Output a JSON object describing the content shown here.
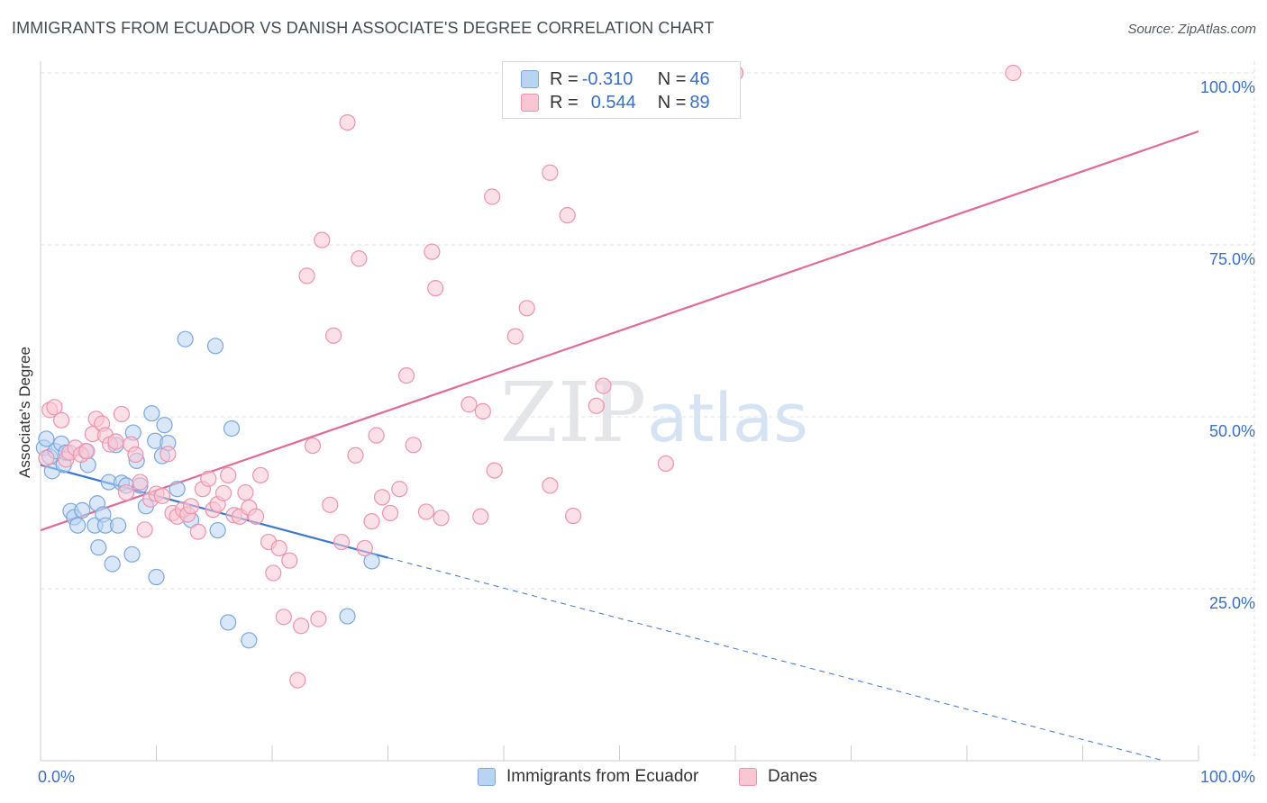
{
  "header": {
    "title": "IMMIGRANTS FROM ECUADOR VS DANISH ASSOCIATE'S DEGREE CORRELATION CHART",
    "source": "Source: ZipAtlas.com"
  },
  "legend": {
    "blue": {
      "r_label": "R = ",
      "r_value": "-0.310",
      "n_label": "N = ",
      "n_value": "46"
    },
    "pink": {
      "r_label": "R = ",
      "r_value": "0.544",
      "n_label": "N = ",
      "n_value": "89"
    }
  },
  "colors": {
    "blue_fill": "#b9d3f2",
    "blue_stroke": "#7aa7df",
    "blue_line": "#3a78d0",
    "pink_fill": "#f9c6d4",
    "pink_stroke": "#ee93ad",
    "pink_line": "#e06b96",
    "axis_label": "#3b6fc4",
    "grid": "#dfe2e6"
  },
  "watermark": {
    "zip": "ZIP",
    "atlas": "atlas"
  },
  "chart_data": {
    "type": "scatter",
    "title": "IMMIGRANTS FROM ECUADOR VS DANISH ASSOCIATE'S DEGREE CORRELATION CHART",
    "xlabel": "",
    "ylabel": "Associate's Degree",
    "xlim": [
      0,
      100
    ],
    "ylim": [
      0,
      102
    ],
    "x_tick_labels": [
      "0.0%",
      "100.0%"
    ],
    "y_ticks": [
      25,
      50,
      75,
      100
    ],
    "y_tick_labels": [
      "25.0%",
      "50.0%",
      "75.0%",
      "100.0%"
    ],
    "grid": true,
    "legend_position": "top-center",
    "series": [
      {
        "name": "Immigrants from Ecuador",
        "color": "#b9d3f2",
        "points": [
          [
            0.3,
            45.5
          ],
          [
            0.5,
            46.8
          ],
          [
            0.8,
            44.2
          ],
          [
            1.0,
            42.1
          ],
          [
            1.3,
            45.0
          ],
          [
            1.8,
            46.1
          ],
          [
            2.0,
            43.0
          ],
          [
            2.2,
            44.8
          ],
          [
            2.6,
            36.3
          ],
          [
            2.9,
            35.4
          ],
          [
            3.2,
            34.2
          ],
          [
            3.6,
            36.4
          ],
          [
            3.9,
            45.0
          ],
          [
            4.1,
            43.0
          ],
          [
            4.7,
            34.2
          ],
          [
            4.9,
            37.4
          ],
          [
            5.0,
            31.0
          ],
          [
            5.4,
            35.8
          ],
          [
            5.6,
            34.2
          ],
          [
            5.9,
            40.5
          ],
          [
            6.2,
            28.6
          ],
          [
            6.5,
            45.9
          ],
          [
            6.7,
            34.2
          ],
          [
            7.0,
            40.4
          ],
          [
            7.4,
            40.0
          ],
          [
            7.9,
            30.0
          ],
          [
            8.0,
            47.7
          ],
          [
            8.3,
            43.6
          ],
          [
            8.6,
            40.0
          ],
          [
            9.1,
            37.0
          ],
          [
            9.6,
            50.5
          ],
          [
            9.9,
            46.5
          ],
          [
            10.0,
            26.7
          ],
          [
            10.5,
            44.3
          ],
          [
            10.7,
            48.8
          ],
          [
            11.0,
            46.2
          ],
          [
            11.8,
            39.5
          ],
          [
            12.5,
            61.3
          ],
          [
            13.0,
            35.0
          ],
          [
            15.1,
            60.3
          ],
          [
            15.3,
            33.5
          ],
          [
            16.2,
            20.1
          ],
          [
            16.5,
            48.3
          ],
          [
            18.0,
            17.5
          ],
          [
            26.5,
            21.0
          ],
          [
            28.6,
            29.0
          ]
        ]
      },
      {
        "name": "Danes",
        "color": "#f9c6d4",
        "points": [
          [
            0.5,
            44.0
          ],
          [
            0.8,
            51.0
          ],
          [
            1.2,
            51.4
          ],
          [
            1.8,
            49.5
          ],
          [
            2.2,
            43.8
          ],
          [
            2.5,
            44.8
          ],
          [
            3.0,
            45.5
          ],
          [
            3.5,
            44.5
          ],
          [
            4.0,
            45.0
          ],
          [
            4.5,
            47.5
          ],
          [
            4.8,
            49.7
          ],
          [
            5.3,
            49.0
          ],
          [
            5.6,
            47.3
          ],
          [
            6.0,
            46.0
          ],
          [
            6.5,
            46.4
          ],
          [
            7.0,
            50.4
          ],
          [
            7.4,
            39.0
          ],
          [
            7.8,
            46.0
          ],
          [
            8.2,
            44.5
          ],
          [
            8.6,
            40.5
          ],
          [
            9.0,
            33.6
          ],
          [
            9.5,
            38.0
          ],
          [
            10.0,
            38.8
          ],
          [
            10.5,
            38.5
          ],
          [
            11.0,
            44.6
          ],
          [
            11.4,
            36.0
          ],
          [
            11.8,
            35.5
          ],
          [
            12.3,
            36.5
          ],
          [
            12.7,
            35.8
          ],
          [
            13.0,
            37.0
          ],
          [
            13.6,
            33.3
          ],
          [
            14.0,
            39.5
          ],
          [
            14.5,
            41.0
          ],
          [
            14.9,
            36.5
          ],
          [
            15.3,
            37.3
          ],
          [
            15.8,
            38.9
          ],
          [
            16.2,
            41.5
          ],
          [
            16.7,
            35.7
          ],
          [
            17.2,
            35.5
          ],
          [
            17.7,
            39.0
          ],
          [
            18.0,
            36.8
          ],
          [
            18.6,
            35.5
          ],
          [
            19.0,
            41.5
          ],
          [
            19.7,
            31.8
          ],
          [
            20.1,
            27.3
          ],
          [
            20.6,
            30.9
          ],
          [
            21.0,
            20.9
          ],
          [
            21.5,
            29.1
          ],
          [
            22.2,
            11.7
          ],
          [
            22.5,
            19.6
          ],
          [
            23.0,
            70.5
          ],
          [
            23.5,
            45.8
          ],
          [
            24.0,
            20.6
          ],
          [
            24.3,
            75.7
          ],
          [
            25.0,
            37.2
          ],
          [
            25.3,
            61.8
          ],
          [
            26.0,
            31.8
          ],
          [
            26.5,
            92.8
          ],
          [
            27.2,
            44.4
          ],
          [
            27.5,
            73.0
          ],
          [
            28.0,
            30.9
          ],
          [
            28.6,
            34.8
          ],
          [
            29.0,
            47.3
          ],
          [
            29.5,
            38.3
          ],
          [
            30.2,
            36.0
          ],
          [
            31.0,
            39.5
          ],
          [
            31.6,
            56.0
          ],
          [
            32.2,
            45.9
          ],
          [
            33.3,
            36.2
          ],
          [
            33.8,
            74.0
          ],
          [
            34.1,
            68.7
          ],
          [
            34.6,
            35.3
          ],
          [
            37.0,
            51.8
          ],
          [
            38.0,
            35.5
          ],
          [
            38.2,
            50.8
          ],
          [
            39.0,
            82.0
          ],
          [
            39.2,
            42.2
          ],
          [
            41.0,
            61.7
          ],
          [
            42.0,
            65.8
          ],
          [
            44.0,
            85.5
          ],
          [
            44.0,
            40.0
          ],
          [
            45.5,
            79.3
          ],
          [
            46.0,
            35.6
          ],
          [
            48.0,
            51.6
          ],
          [
            48.6,
            54.5
          ],
          [
            54.0,
            43.2
          ],
          [
            60.0,
            100.0
          ],
          [
            60.0,
            100.0
          ],
          [
            84.0,
            100.0
          ]
        ]
      }
    ],
    "trendlines": [
      {
        "series": "Immigrants from Ecuador",
        "x1": 0,
        "y1": 43.0,
        "x2": 30,
        "y2": 29.5,
        "style": "solid"
      },
      {
        "series": "Immigrants from Ecuador",
        "x1": 30,
        "y1": 29.5,
        "x2": 97,
        "y2": 0,
        "style": "dashed"
      },
      {
        "series": "Danes",
        "x1": 0,
        "y1": 33.5,
        "x2": 100,
        "y2": 91.5,
        "style": "solid"
      }
    ]
  }
}
